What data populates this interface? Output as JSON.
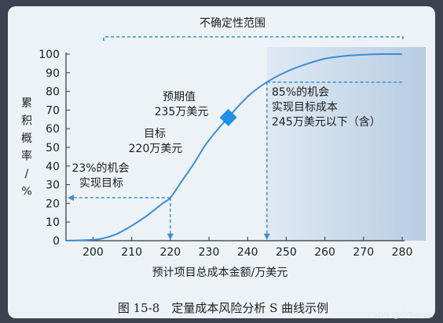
{
  "caption": "图 15-8　定量成本风险分析 S 曲线示例",
  "watermark": "CSDN @小Tomkk",
  "colors": {
    "curve": "#3b8ed4",
    "dashed": "#3b8ed4",
    "diamond": "#1f8fe6",
    "axis": "#333333",
    "photo_bg": "#edf2f6",
    "outer_bg": "#3e4250"
  },
  "chart_data": {
    "type": "line",
    "title": "",
    "xlabel": "预计项目总成本金额/万美元",
    "ylabel_chars": [
      "累",
      "积",
      "概",
      "率",
      "/",
      "%"
    ],
    "xlim": [
      193,
      280
    ],
    "ylim": [
      0,
      100
    ],
    "x_ticks": [
      200,
      210,
      220,
      230,
      240,
      250,
      260,
      270,
      280
    ],
    "y_ticks": [
      0,
      10,
      20,
      30,
      40,
      50,
      60,
      70,
      80,
      90,
      100
    ],
    "series": [
      {
        "points": [
          [
            193,
            0
          ],
          [
            198,
            0.3
          ],
          [
            202,
            1
          ],
          [
            206,
            3.5
          ],
          [
            210,
            8
          ],
          [
            214,
            13.5
          ],
          [
            218,
            20
          ],
          [
            220,
            23
          ],
          [
            223,
            32
          ],
          [
            226,
            41
          ],
          [
            229,
            51
          ],
          [
            232,
            59
          ],
          [
            235,
            66
          ],
          [
            238,
            73
          ],
          [
            241,
            79
          ],
          [
            245,
            85
          ],
          [
            250,
            90.5
          ],
          [
            255,
            94.5
          ],
          [
            260,
            97.5
          ],
          [
            265,
            99
          ],
          [
            270,
            99.7
          ],
          [
            275,
            100
          ],
          [
            280,
            100
          ]
        ]
      }
    ],
    "markers": [
      {
        "shape": "diamond",
        "x": 235,
        "y": 66
      }
    ],
    "guides": [
      {
        "x": 220,
        "y": 23
      },
      {
        "x": 245,
        "y": 85
      }
    ],
    "shaded_from_x": 245,
    "annotations": {
      "uncertainty": "不确定性范围",
      "expected_1": "预期值",
      "expected_2": "235万美元",
      "target_1": "目标",
      "target_2": "220万美元",
      "p23_1": "23%的机会",
      "p23_2": "实现目标",
      "p85_1": "85%的机会",
      "p85_2": "实现目标成本",
      "p85_3": "245万美元以下（含）"
    }
  }
}
